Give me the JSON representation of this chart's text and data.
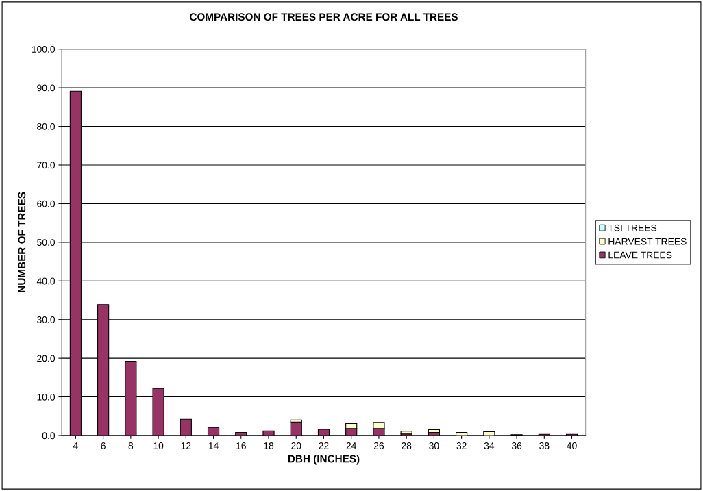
{
  "chart_data": {
    "type": "bar",
    "title": "COMPARISON OF TREES PER ACRE FOR ALL TREES",
    "xlabel": "DBH (INCHES)",
    "ylabel": "NUMBER OF TREES",
    "categories": [
      "4",
      "6",
      "8",
      "10",
      "12",
      "14",
      "16",
      "18",
      "20",
      "22",
      "24",
      "26",
      "28",
      "30",
      "32",
      "34",
      "36",
      "38",
      "40"
    ],
    "stacked": true,
    "grid": "y",
    "legend": "right",
    "ylim": [
      0,
      100
    ],
    "yticks": [
      {
        "value": 0,
        "label": "0.0"
      },
      {
        "value": 10,
        "label": "10.0"
      },
      {
        "value": 20,
        "label": "20.0"
      },
      {
        "value": 30,
        "label": "30.0"
      },
      {
        "value": 40,
        "label": "40.0"
      },
      {
        "value": 50,
        "label": "50.0"
      },
      {
        "value": 60,
        "label": "60.0"
      },
      {
        "value": 70,
        "label": "70.0"
      },
      {
        "value": 80,
        "label": "80.0"
      },
      {
        "value": 90,
        "label": "90.0"
      },
      {
        "value": 100,
        "label": "100.0"
      }
    ],
    "series": [
      {
        "name": "LEAVE TREES",
        "color": "#993366",
        "values": [
          89.1,
          33.9,
          19.2,
          12.2,
          4.2,
          2.1,
          0.8,
          1.2,
          3.5,
          1.6,
          1.8,
          1.8,
          0.4,
          0.8,
          null,
          null,
          0.2,
          0.3,
          0.3
        ]
      },
      {
        "name": "HARVEST TREES",
        "color": "#ffffcc",
        "values": [
          0,
          0,
          0,
          0,
          0,
          0,
          0,
          0,
          0.5,
          0,
          1.3,
          1.6,
          0.7,
          0.7,
          0.8,
          1.0,
          0,
          0,
          0
        ]
      },
      {
        "name": "TSI TREES",
        "color": "#ccffff",
        "values": [
          0,
          0,
          0,
          0,
          0,
          0,
          0,
          0,
          0,
          0,
          0,
          0,
          0,
          0,
          0,
          0,
          0,
          0,
          0
        ]
      }
    ]
  }
}
